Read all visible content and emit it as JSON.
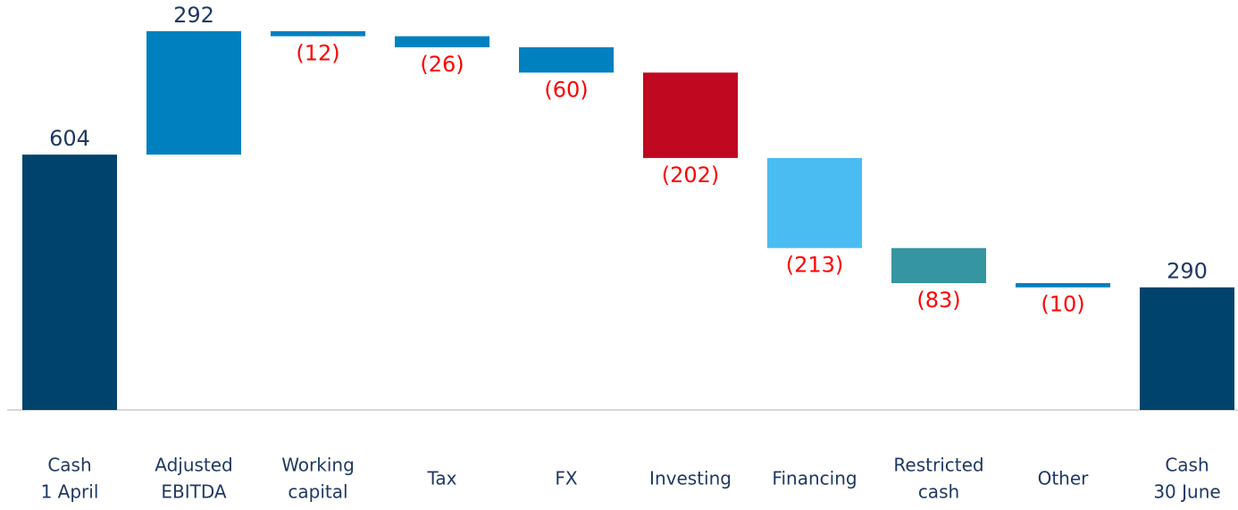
{
  "chart_data": {
    "type": "waterfall",
    "categories": [
      [
        "Cash",
        "1 April"
      ],
      [
        "Adjusted",
        "EBITDA"
      ],
      [
        "Working",
        "capital"
      ],
      [
        "Tax"
      ],
      [
        "FX"
      ],
      [
        "Investing"
      ],
      [
        "Financing"
      ],
      [
        "Restricted",
        "cash"
      ],
      [
        "Other"
      ],
      [
        "Cash",
        "30 June"
      ]
    ],
    "measure": [
      "absolute",
      "relative",
      "relative",
      "relative",
      "relative",
      "relative",
      "relative",
      "relative",
      "relative",
      "absolute"
    ],
    "values": [
      604,
      292,
      -12,
      -26,
      -60,
      -202,
      -213,
      -83,
      -10,
      290
    ],
    "value_labels": [
      "604",
      "292",
      "(12)",
      "(26)",
      "(60)",
      "(202)",
      "(213)",
      "(83)",
      "(10)",
      "290"
    ],
    "colors": [
      "#00436d",
      "#0080bf",
      "#0080bf",
      "#0080bf",
      "#0080bf",
      "#c00820",
      "#4bbcf2",
      "#3595a0",
      "#0080bf",
      "#00436d"
    ],
    "label_color": "#1f3864",
    "negative_label_color": "#ff0000",
    "ylim": [
      0,
      900
    ]
  }
}
